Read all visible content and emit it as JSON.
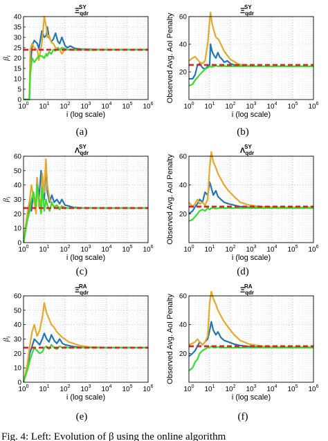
{
  "colors": {
    "blue": "#1f77b4",
    "orange": "#e8a827",
    "green": "#33e02a",
    "target": "#d62728",
    "frame": "#000000",
    "grid": "#d9d9d9"
  },
  "caption": {
    "text": "Fig. 4: Left: Evolution of β using the online algorithm"
  },
  "subfig_labels": [
    "(a)",
    "(b)",
    "(c)",
    "(d)",
    "(e)",
    "(f)"
  ],
  "chart_data": [
    {
      "type": "line",
      "title": "Ξ qdr SY",
      "xlabel": "i (log scale)",
      "ylabel": "βi",
      "xscale": "log",
      "xlim": [
        1,
        1000000
      ],
      "ylim": [
        0,
        40
      ],
      "yticks": [
        0,
        5,
        10,
        15,
        20,
        25,
        30,
        35,
        40
      ],
      "xticks": [
        "10^0",
        "10^1",
        "10^2",
        "10^3",
        "10^4",
        "10^5",
        "10^6"
      ],
      "target": 24,
      "series": [
        {
          "color_key": "blue",
          "x": [
            1,
            1.9,
            2.1,
            2.6,
            3.3,
            4.6,
            5.5,
            7.6,
            10,
            12.5,
            14,
            17,
            22,
            27,
            35,
            45,
            55,
            70,
            100,
            130,
            180,
            300,
            600,
            1500,
            5000,
            20000,
            1000000
          ],
          "y": [
            0,
            0,
            15,
            26,
            28.5,
            27,
            24.5,
            33,
            30,
            31,
            35,
            30,
            28,
            29,
            32,
            28,
            27,
            30,
            26,
            25,
            25.8,
            24.6,
            24.3,
            24.2,
            24.1,
            24.1,
            24.1
          ]
        },
        {
          "color_key": "orange",
          "x": [
            1,
            1.9,
            2.1,
            2.6,
            3.3,
            4.6,
            5.5,
            7.6,
            10,
            12.5,
            14,
            17,
            22,
            27,
            35,
            45,
            55,
            70,
            100,
            130,
            180,
            300,
            600,
            1500,
            5000,
            20000,
            1000000
          ],
          "y": [
            0,
            0,
            24,
            27,
            25,
            24,
            19,
            27,
            40,
            35,
            30,
            31,
            27.5,
            27,
            25,
            24.5,
            24,
            22,
            24.5,
            24,
            24,
            23.8,
            24,
            23.8,
            24,
            24,
            24
          ]
        },
        {
          "color_key": "green",
          "x": [
            1,
            1.9,
            2.1,
            2.6,
            3.3,
            4.6,
            5.5,
            7.6,
            10,
            12.5,
            14,
            17,
            22,
            27,
            35,
            45,
            55,
            70,
            100,
            130,
            180,
            300,
            600,
            1500,
            5000,
            20000,
            1000000
          ],
          "y": [
            0,
            0,
            12,
            20,
            18,
            20,
            21,
            21,
            20,
            22,
            21,
            23,
            22,
            24,
            23.5,
            25,
            24,
            25,
            24.5,
            24,
            24.2,
            24,
            24,
            24,
            24,
            24,
            24
          ]
        }
      ]
    },
    {
      "type": "line",
      "title": "Ξ qdr SY",
      "xlabel": "i (log scale)",
      "ylabel": "Observed Avg. AoI Penalty",
      "xscale": "log",
      "xlim": [
        1,
        1000000
      ],
      "ylim": [
        0,
        60
      ],
      "yticks": [
        20,
        40,
        60
      ],
      "xticks": [
        "10^0",
        "10^1",
        "10^2",
        "10^3",
        "10^4",
        "10^5",
        "10^6"
      ],
      "target": 25,
      "series": [
        {
          "color_key": "blue",
          "x": [
            1,
            1.5,
            2,
            2.6,
            3.3,
            4.5,
            6,
            8,
            10,
            11,
            13,
            16,
            20,
            25,
            30,
            40,
            50,
            70,
            100,
            150,
            250,
            500,
            1500,
            5000,
            30000,
            1000000
          ],
          "y": [
            15,
            15,
            18,
            25,
            26,
            23,
            22,
            24,
            25,
            40,
            35,
            32,
            30,
            34,
            31,
            29,
            27,
            28,
            26,
            25,
            24.5,
            24.2,
            24.1,
            24,
            24,
            24
          ]
        },
        {
          "color_key": "orange",
          "x": [
            1,
            1.5,
            2,
            2.6,
            3.3,
            4.5,
            6,
            8,
            10,
            11,
            13,
            16,
            20,
            25,
            30,
            40,
            50,
            70,
            100,
            150,
            250,
            500,
            1500,
            5000,
            30000,
            1000000
          ],
          "y": [
            28,
            30,
            31,
            29,
            27,
            26,
            28,
            40,
            57,
            63,
            55,
            50,
            45,
            44,
            42,
            38,
            35,
            32,
            29,
            27.5,
            25.5,
            24.8,
            24.2,
            24,
            24,
            24
          ]
        },
        {
          "color_key": "green",
          "x": [
            1,
            1.5,
            2,
            2.6,
            3.3,
            4.5,
            6,
            8,
            10,
            11,
            13,
            16,
            20,
            25,
            30,
            40,
            50,
            70,
            100,
            150,
            250,
            500,
            1500,
            5000,
            30000,
            1000000
          ],
          "y": [
            10,
            11,
            14,
            16,
            18,
            20,
            22,
            23,
            24,
            24,
            23.5,
            24,
            24.5,
            24,
            24.2,
            24,
            24.3,
            24,
            24.1,
            24,
            24,
            24,
            24,
            24,
            24,
            24
          ]
        }
      ]
    },
    {
      "type": "line",
      "title": "Λ qdr SY",
      "xlabel": "i (log scale)",
      "ylabel": "βi",
      "xscale": "log",
      "xlim": [
        1,
        1000000
      ],
      "ylim": [
        0,
        60
      ],
      "yticks": [
        0,
        10,
        20,
        30,
        40,
        50,
        60
      ],
      "xticks": [
        "10^0",
        "10^1",
        "10^2",
        "10^3",
        "10^4",
        "10^5",
        "10^6"
      ],
      "target": 24,
      "series": [
        {
          "color_key": "blue",
          "x": [
            1,
            1.5,
            2,
            2.4,
            3,
            4,
            4.5,
            5.5,
            7,
            8,
            10,
            12,
            14,
            18,
            23,
            30,
            40,
            55,
            70,
            100,
            150,
            250,
            600,
            2000,
            10000,
            1000000
          ],
          "y": [
            0,
            15,
            28,
            22,
            35,
            25,
            45,
            30,
            50,
            35,
            30,
            55,
            35,
            28,
            33,
            28,
            30,
            27,
            30,
            26,
            25.5,
            24.5,
            24.2,
            24.1,
            24,
            24
          ]
        },
        {
          "color_key": "orange",
          "x": [
            1,
            1.5,
            2,
            2.4,
            3,
            4,
            4.5,
            5.5,
            7,
            8,
            10,
            12,
            14,
            18,
            23,
            30,
            40,
            55,
            70,
            100,
            150,
            250,
            600,
            2000,
            10000,
            1000000
          ],
          "y": [
            0,
            20,
            30,
            40,
            32,
            20,
            45,
            25,
            30,
            48,
            35,
            58,
            40,
            30,
            27,
            25,
            26,
            24,
            25.5,
            24.2,
            24,
            24,
            24,
            24,
            24,
            24
          ]
        },
        {
          "color_key": "green",
          "x": [
            1,
            1.5,
            2,
            2.4,
            3,
            4,
            4.5,
            5.5,
            7,
            8,
            10,
            12,
            14,
            18,
            23,
            30,
            40,
            55,
            70,
            100,
            150,
            250,
            600,
            2000,
            10000,
            1000000
          ],
          "y": [
            0,
            15,
            22,
            30,
            35,
            25,
            40,
            32,
            20,
            38,
            22,
            30,
            26,
            22,
            28,
            24,
            26,
            23,
            25,
            24,
            24,
            24,
            24,
            24,
            24,
            24
          ]
        }
      ]
    },
    {
      "type": "line",
      "title": "Λ qdr SY",
      "xlabel": "i (log scale)",
      "ylabel": "Observed Avg. AoI Penalty",
      "xscale": "log",
      "xlim": [
        1,
        1000000
      ],
      "ylim": [
        0,
        60
      ],
      "yticks": [
        20,
        40,
        60
      ],
      "xticks": [
        "10^0",
        "10^1",
        "10^2",
        "10^3",
        "10^4",
        "10^5",
        "10^6"
      ],
      "target": 25,
      "series": [
        {
          "color_key": "blue",
          "x": [
            1,
            1.5,
            2,
            2.6,
            3.3,
            4.5,
            6,
            8,
            10,
            12,
            15,
            20,
            25,
            35,
            50,
            80,
            150,
            300,
            800,
            3000,
            20000,
            1000000
          ],
          "y": [
            20,
            22,
            25,
            27,
            30,
            28,
            35,
            33,
            42,
            38,
            33,
            36,
            32,
            30,
            28,
            27,
            26,
            25,
            24.5,
            24.2,
            24,
            24
          ]
        },
        {
          "color_key": "orange",
          "x": [
            1,
            1.5,
            2,
            2.6,
            3.3,
            4.5,
            6,
            8,
            10,
            12,
            15,
            20,
            25,
            35,
            50,
            80,
            150,
            300,
            800,
            3000,
            20000,
            1000000
          ],
          "y": [
            28,
            25,
            27,
            30,
            27,
            28,
            26,
            30,
            52,
            63,
            56,
            52,
            48,
            44,
            40,
            36,
            32,
            28,
            26,
            25,
            24.5,
            24.5
          ]
        },
        {
          "color_key": "green",
          "x": [
            1,
            1.5,
            2,
            2.6,
            3.3,
            4.5,
            6,
            8,
            10,
            12,
            15,
            20,
            25,
            35,
            50,
            80,
            150,
            300,
            800,
            3000,
            20000,
            1000000
          ],
          "y": [
            15,
            16,
            18,
            20,
            22,
            23,
            22,
            24,
            23,
            24,
            24,
            23.5,
            24,
            24,
            24,
            24,
            24,
            24,
            24,
            24,
            24,
            24
          ]
        }
      ]
    },
    {
      "type": "line",
      "title": "Ξ qdr RA",
      "xlabel": "i (log scale)",
      "ylabel": "βi",
      "xscale": "log",
      "xlim": [
        1,
        1000000
      ],
      "ylim": [
        0,
        60
      ],
      "yticks": [
        0,
        10,
        20,
        30,
        40,
        50,
        60
      ],
      "xticks": [
        "10^0",
        "10^1",
        "10^2",
        "10^3",
        "10^4",
        "10^5",
        "10^6"
      ],
      "target": 24,
      "series": [
        {
          "color_key": "blue",
          "x": [
            1,
            1.5,
            2,
            2.6,
            3.3,
            4.5,
            6,
            8,
            10,
            13,
            17,
            22,
            30,
            40,
            55,
            75,
            100,
            150,
            250,
            500,
            1500,
            10000,
            1000000
          ],
          "y": [
            0,
            10,
            20,
            25,
            30,
            28,
            26,
            30,
            34,
            30,
            28,
            33,
            29,
            27,
            30,
            27,
            26,
            25.5,
            24.8,
            24.3,
            24.1,
            24,
            24
          ]
        },
        {
          "color_key": "orange",
          "x": [
            1,
            1.5,
            2,
            2.6,
            3.3,
            4.5,
            6,
            8,
            10,
            13,
            17,
            22,
            30,
            40,
            55,
            75,
            100,
            150,
            250,
            500,
            1500,
            10000,
            1000000
          ],
          "y": [
            0,
            12,
            25,
            35,
            40,
            32,
            36,
            45,
            55,
            48,
            44,
            40,
            38,
            35,
            33,
            31,
            30,
            28,
            27,
            25.5,
            24.5,
            24.2,
            24.2
          ]
        },
        {
          "color_key": "green",
          "x": [
            1,
            1.5,
            2,
            2.6,
            3.3,
            4.5,
            6,
            8,
            10,
            13,
            17,
            22,
            30,
            40,
            55,
            75,
            100,
            150,
            250,
            500,
            1500,
            10000,
            1000000
          ],
          "y": [
            0,
            8,
            15,
            20,
            24,
            22,
            20,
            21,
            24,
            25,
            23,
            26,
            24,
            23,
            25,
            24,
            24.5,
            24,
            24,
            24,
            24,
            24,
            24
          ]
        }
      ]
    },
    {
      "type": "line",
      "title": "Ξ qdr RA",
      "xlabel": "i (log scale)",
      "ylabel": "Observed Avg. AoI Penalty",
      "xscale": "log",
      "xlim": [
        1,
        1000000
      ],
      "ylim": [
        0,
        60
      ],
      "yticks": [
        20,
        40,
        60
      ],
      "xticks": [
        "10^0",
        "10^1",
        "10^2",
        "10^3",
        "10^4",
        "10^5",
        "10^6"
      ],
      "target": 25,
      "series": [
        {
          "color_key": "blue",
          "x": [
            1,
            1.5,
            2,
            2.6,
            3.3,
            4.5,
            6,
            8,
            10,
            12,
            15,
            20,
            25,
            35,
            50,
            80,
            150,
            300,
            800,
            3000,
            20000,
            1000000
          ],
          "y": [
            18,
            20,
            22,
            25,
            28,
            26,
            28,
            30,
            36,
            42,
            36,
            33,
            35,
            31,
            29,
            28,
            26.5,
            25.5,
            24.8,
            24.2,
            24,
            24
          ]
        },
        {
          "color_key": "orange",
          "x": [
            1,
            1.5,
            2,
            2.6,
            3.3,
            4.5,
            6,
            8,
            10,
            12,
            15,
            20,
            25,
            35,
            50,
            80,
            150,
            300,
            800,
            3000,
            20000,
            1000000
          ],
          "y": [
            26,
            27,
            28,
            30,
            28,
            26,
            28,
            32,
            55,
            63,
            58,
            54,
            50,
            46,
            42,
            38,
            33,
            29,
            26.5,
            25,
            24.5,
            24.5
          ]
        },
        {
          "color_key": "green",
          "x": [
            1,
            1.5,
            2,
            2.6,
            3.3,
            4.5,
            6,
            8,
            10,
            12,
            15,
            20,
            25,
            35,
            50,
            80,
            150,
            300,
            800,
            3000,
            20000,
            1000000
          ],
          "y": [
            8,
            10,
            14,
            16,
            20,
            22,
            23,
            24,
            24,
            25,
            24,
            24,
            24.5,
            24,
            24,
            24,
            24,
            24,
            24,
            24,
            24,
            24
          ]
        }
      ]
    }
  ]
}
